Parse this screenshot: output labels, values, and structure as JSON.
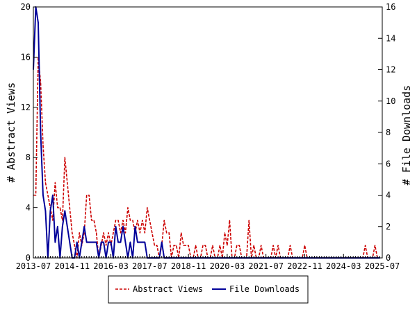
{
  "chart_data": {
    "type": "line",
    "title": "",
    "xlabel": "",
    "ylabel_left": "# Abstract Views",
    "ylabel_right": "# File Downloads",
    "x_ticks": [
      "2013-07",
      "2014-11",
      "2016-03",
      "2017-07",
      "2018-11",
      "2020-03",
      "2021-07",
      "2022-11",
      "2024-03",
      "2025-07"
    ],
    "x_range": [
      "2013-07",
      "2025-07"
    ],
    "ylim_left": [
      0,
      20
    ],
    "yticks_left": [
      0,
      4,
      8,
      12,
      16,
      20
    ],
    "ylim_right": [
      0,
      16
    ],
    "yticks_right": [
      0,
      2,
      4,
      6,
      8,
      10,
      12,
      14,
      16
    ],
    "grid": false,
    "legend_position": "bottom-center",
    "series": [
      {
        "name": "Abstract Views",
        "axis": "left",
        "color": "#cc0000",
        "style": "dashed",
        "points": [
          [
            "2013-07",
            5
          ],
          [
            "2013-08",
            5
          ],
          [
            "2013-09",
            16
          ],
          [
            "2013-10",
            14
          ],
          [
            "2013-11",
            9
          ],
          [
            "2013-12",
            6
          ],
          [
            "2014-01",
            5
          ],
          [
            "2014-02",
            4
          ],
          [
            "2014-03",
            3
          ],
          [
            "2014-04",
            6
          ],
          [
            "2014-05",
            4
          ],
          [
            "2014-06",
            4
          ],
          [
            "2014-07",
            3
          ],
          [
            "2014-08",
            8
          ],
          [
            "2014-09",
            6
          ],
          [
            "2014-10",
            4
          ],
          [
            "2014-11",
            2
          ],
          [
            "2014-12",
            1
          ],
          [
            "2015-01",
            0
          ],
          [
            "2015-02",
            2
          ],
          [
            "2015-03",
            1
          ],
          [
            "2015-04",
            2
          ],
          [
            "2015-05",
            5
          ],
          [
            "2015-06",
            5
          ],
          [
            "2015-07",
            3
          ],
          [
            "2015-08",
            3
          ],
          [
            "2015-09",
            2
          ],
          [
            "2015-10",
            0
          ],
          [
            "2015-11",
            1
          ],
          [
            "2015-12",
            2
          ],
          [
            "2016-01",
            1
          ],
          [
            "2016-02",
            2
          ],
          [
            "2016-03",
            1
          ],
          [
            "2016-04",
            2
          ],
          [
            "2016-05",
            3
          ],
          [
            "2016-06",
            3
          ],
          [
            "2016-07",
            2
          ],
          [
            "2016-08",
            3
          ],
          [
            "2016-09",
            2
          ],
          [
            "2016-10",
            4
          ],
          [
            "2016-11",
            3
          ],
          [
            "2016-12",
            3
          ],
          [
            "2017-01",
            2
          ],
          [
            "2017-02",
            3
          ],
          [
            "2017-03",
            2
          ],
          [
            "2017-04",
            3
          ],
          [
            "2017-05",
            2
          ],
          [
            "2017-06",
            4
          ],
          [
            "2017-07",
            3
          ],
          [
            "2017-08",
            2
          ],
          [
            "2017-09",
            1
          ],
          [
            "2017-10",
            1
          ],
          [
            "2017-11",
            0
          ],
          [
            "2017-12",
            1
          ],
          [
            "2018-01",
            3
          ],
          [
            "2018-02",
            2
          ],
          [
            "2018-03",
            2
          ],
          [
            "2018-04",
            0
          ],
          [
            "2018-05",
            1
          ],
          [
            "2018-06",
            1
          ],
          [
            "2018-07",
            0
          ],
          [
            "2018-08",
            2
          ],
          [
            "2018-09",
            1
          ],
          [
            "2018-10",
            1
          ],
          [
            "2018-11",
            1
          ],
          [
            "2018-12",
            0
          ],
          [
            "2019-01",
            0
          ],
          [
            "2019-02",
            1
          ],
          [
            "2019-03",
            0
          ],
          [
            "2019-04",
            0
          ],
          [
            "2019-05",
            1
          ],
          [
            "2019-06",
            1
          ],
          [
            "2019-07",
            0
          ],
          [
            "2019-08",
            0
          ],
          [
            "2019-09",
            1
          ],
          [
            "2019-10",
            0
          ],
          [
            "2019-11",
            0
          ],
          [
            "2019-12",
            1
          ],
          [
            "2020-01",
            0
          ],
          [
            "2020-02",
            2
          ],
          [
            "2020-03",
            1
          ],
          [
            "2020-04",
            3
          ],
          [
            "2020-05",
            0
          ],
          [
            "2020-06",
            0
          ],
          [
            "2020-07",
            1
          ],
          [
            "2020-08",
            1
          ],
          [
            "2020-09",
            0
          ],
          [
            "2020-10",
            0
          ],
          [
            "2020-11",
            0
          ],
          [
            "2020-12",
            3
          ],
          [
            "2021-01",
            0
          ],
          [
            "2021-02",
            1
          ],
          [
            "2021-03",
            0
          ],
          [
            "2021-04",
            0
          ],
          [
            "2021-05",
            1
          ],
          [
            "2021-06",
            0
          ],
          [
            "2021-07",
            0
          ],
          [
            "2021-08",
            0
          ],
          [
            "2021-09",
            0
          ],
          [
            "2021-10",
            1
          ],
          [
            "2021-11",
            0
          ],
          [
            "2021-12",
            1
          ],
          [
            "2022-01",
            0
          ],
          [
            "2022-02",
            0
          ],
          [
            "2022-03",
            0
          ],
          [
            "2022-04",
            0
          ],
          [
            "2022-05",
            1
          ],
          [
            "2022-06",
            0
          ],
          [
            "2022-07",
            0
          ],
          [
            "2022-08",
            0
          ],
          [
            "2022-09",
            0
          ],
          [
            "2022-10",
            0
          ],
          [
            "2022-11",
            1
          ],
          [
            "2022-12",
            0
          ],
          [
            "2023-01",
            0
          ],
          [
            "2023-06",
            0
          ],
          [
            "2024-01",
            0
          ],
          [
            "2024-06",
            0
          ],
          [
            "2024-11",
            0
          ],
          [
            "2024-12",
            1
          ],
          [
            "2025-01",
            0
          ],
          [
            "2025-02",
            0
          ],
          [
            "2025-03",
            0
          ],
          [
            "2025-04",
            1
          ],
          [
            "2025-05",
            0
          ],
          [
            "2025-06",
            0
          ]
        ]
      },
      {
        "name": "File Downloads",
        "axis": "right",
        "color": "#000099",
        "style": "solid",
        "points": [
          [
            "2013-07",
            12
          ],
          [
            "2013-08",
            16
          ],
          [
            "2013-09",
            15
          ],
          [
            "2013-10",
            8
          ],
          [
            "2013-11",
            4
          ],
          [
            "2013-12",
            3
          ],
          [
            "2014-01",
            0
          ],
          [
            "2014-02",
            3
          ],
          [
            "2014-03",
            4
          ],
          [
            "2014-04",
            1
          ],
          [
            "2014-05",
            2
          ],
          [
            "2014-06",
            0
          ],
          [
            "2014-07",
            2
          ],
          [
            "2014-08",
            3
          ],
          [
            "2014-09",
            2
          ],
          [
            "2014-10",
            1
          ],
          [
            "2014-11",
            0
          ],
          [
            "2014-12",
            0
          ],
          [
            "2015-01",
            1
          ],
          [
            "2015-02",
            0
          ],
          [
            "2015-03",
            1
          ],
          [
            "2015-04",
            2
          ],
          [
            "2015-05",
            1
          ],
          [
            "2015-06",
            1
          ],
          [
            "2015-07",
            1
          ],
          [
            "2015-08",
            1
          ],
          [
            "2015-09",
            1
          ],
          [
            "2015-10",
            0
          ],
          [
            "2015-11",
            1
          ],
          [
            "2015-12",
            1
          ],
          [
            "2016-01",
            0
          ],
          [
            "2016-02",
            1
          ],
          [
            "2016-03",
            1
          ],
          [
            "2016-04",
            0
          ],
          [
            "2016-05",
            2
          ],
          [
            "2016-06",
            1
          ],
          [
            "2016-07",
            1
          ],
          [
            "2016-08",
            2
          ],
          [
            "2016-09",
            1
          ],
          [
            "2016-10",
            0
          ],
          [
            "2016-11",
            1
          ],
          [
            "2016-12",
            0
          ],
          [
            "2017-01",
            2
          ],
          [
            "2017-02",
            1
          ],
          [
            "2017-03",
            1
          ],
          [
            "2017-04",
            1
          ],
          [
            "2017-05",
            1
          ],
          [
            "2017-06",
            0
          ],
          [
            "2017-07",
            0
          ],
          [
            "2017-08",
            0
          ],
          [
            "2017-09",
            0
          ],
          [
            "2017-10",
            0
          ],
          [
            "2017-11",
            0
          ],
          [
            "2017-12",
            1
          ],
          [
            "2018-01",
            0
          ],
          [
            "2018-02",
            0
          ],
          [
            "2018-06",
            0
          ],
          [
            "2019-01",
            0
          ],
          [
            "2019-06",
            0
          ],
          [
            "2020-01",
            0
          ],
          [
            "2020-06",
            0
          ],
          [
            "2021-01",
            0
          ],
          [
            "2021-06",
            0
          ],
          [
            "2022-01",
            0
          ],
          [
            "2022-06",
            0
          ],
          [
            "2023-01",
            0
          ],
          [
            "2023-06",
            0
          ],
          [
            "2024-01",
            0
          ],
          [
            "2024-06",
            0
          ],
          [
            "2025-01",
            0
          ],
          [
            "2025-06",
            0
          ]
        ]
      }
    ]
  }
}
